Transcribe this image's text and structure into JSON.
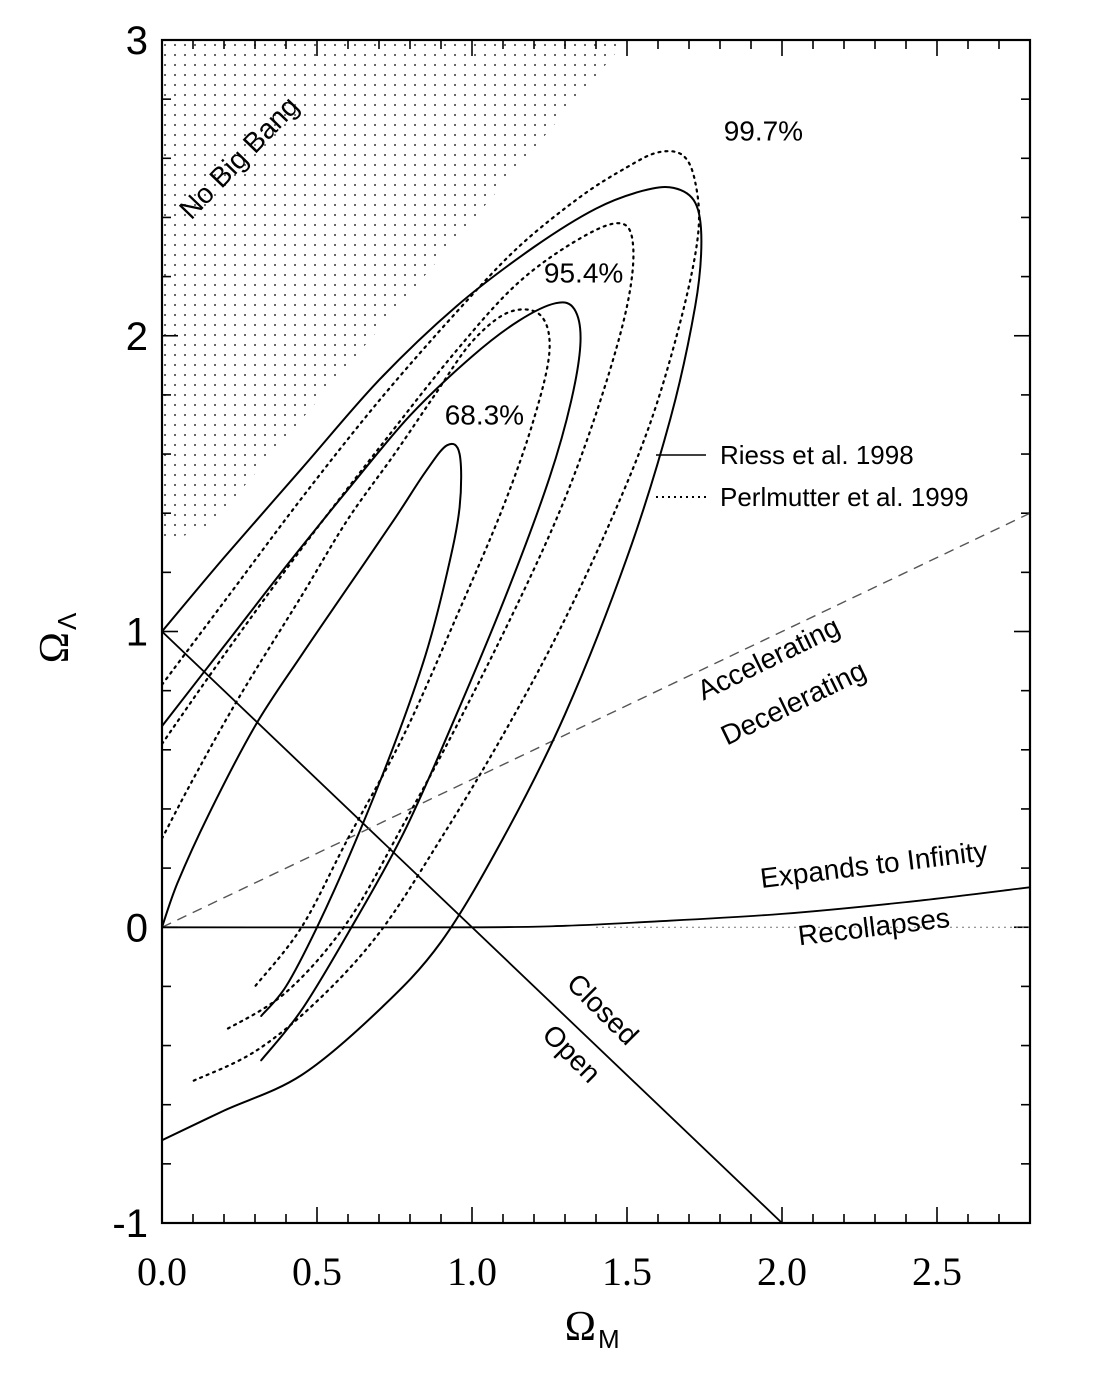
{
  "chart_data": {
    "type": "contour",
    "xlabel": "Ω",
    "xlabel_sub": "M",
    "ylabel": "Ω",
    "ylabel_sub": "Λ",
    "xlim": [
      0.0,
      2.8
    ],
    "ylim": [
      -1,
      3
    ],
    "xticks": [
      {
        "value": 0.0,
        "label": "0.0"
      },
      {
        "value": 0.5,
        "label": "0.5"
      },
      {
        "value": 1.0,
        "label": "1.0"
      },
      {
        "value": 1.5,
        "label": "1.5"
      },
      {
        "value": 2.0,
        "label": "2.0"
      },
      {
        "value": 2.5,
        "label": "2.5"
      }
    ],
    "yticks": [
      {
        "value": -1,
        "label": "-1"
      },
      {
        "value": 0,
        "label": "0"
      },
      {
        "value": 1,
        "label": "1"
      },
      {
        "value": 2,
        "label": "2"
      },
      {
        "value": 3,
        "label": "3"
      }
    ],
    "x_minor_step": 0.1,
    "y_minor_step": 0.2,
    "legend": {
      "placement": "right-middle",
      "entries": [
        {
          "name": "Riess et al. 1998",
          "style": "solid"
        },
        {
          "name": "Perlmutter et al. 1999",
          "style": "dotted"
        }
      ]
    },
    "confidence_levels": [
      "68.3%",
      "95.4%",
      "99.7%"
    ],
    "series": [
      {
        "name": "Riess et al. 1998",
        "style": "solid",
        "level": "68.3%",
        "points": [
          [
            0.0,
            0.0
          ],
          [
            0.05,
            0.15
          ],
          [
            0.15,
            0.38
          ],
          [
            0.3,
            0.68
          ],
          [
            0.45,
            0.92
          ],
          [
            0.6,
            1.15
          ],
          [
            0.75,
            1.38
          ],
          [
            0.85,
            1.54
          ],
          [
            0.92,
            1.63
          ],
          [
            0.96,
            1.6
          ],
          [
            0.96,
            1.42
          ],
          [
            0.92,
            1.2
          ],
          [
            0.85,
            0.92
          ],
          [
            0.75,
            0.62
          ],
          [
            0.62,
            0.28
          ],
          [
            0.5,
            0.0
          ],
          [
            0.4,
            -0.2
          ],
          [
            0.32,
            -0.3
          ]
        ]
      },
      {
        "name": "Riess et al. 1998",
        "style": "solid",
        "level": "95.4%",
        "points": [
          [
            0.0,
            0.68
          ],
          [
            0.2,
            0.95
          ],
          [
            0.4,
            1.22
          ],
          [
            0.6,
            1.48
          ],
          [
            0.8,
            1.73
          ],
          [
            1.0,
            1.93
          ],
          [
            1.15,
            2.05
          ],
          [
            1.27,
            2.11
          ],
          [
            1.33,
            2.09
          ],
          [
            1.35,
            1.98
          ],
          [
            1.32,
            1.78
          ],
          [
            1.25,
            1.52
          ],
          [
            1.12,
            1.15
          ],
          [
            0.95,
            0.72
          ],
          [
            0.78,
            0.32
          ],
          [
            0.6,
            -0.02
          ],
          [
            0.45,
            -0.28
          ],
          [
            0.32,
            -0.45
          ]
        ]
      },
      {
        "name": "Riess et al. 1998",
        "style": "solid",
        "level": "99.7%",
        "points": [
          [
            0.0,
            1.0
          ],
          [
            0.2,
            1.25
          ],
          [
            0.45,
            1.55
          ],
          [
            0.7,
            1.85
          ],
          [
            0.95,
            2.1
          ],
          [
            1.2,
            2.3
          ],
          [
            1.4,
            2.43
          ],
          [
            1.55,
            2.49
          ],
          [
            1.65,
            2.5
          ],
          [
            1.72,
            2.45
          ],
          [
            1.74,
            2.32
          ],
          [
            1.72,
            2.1
          ],
          [
            1.64,
            1.72
          ],
          [
            1.5,
            1.25
          ],
          [
            1.3,
            0.72
          ],
          [
            1.1,
            0.3
          ],
          [
            0.9,
            -0.05
          ],
          [
            0.7,
            -0.28
          ],
          [
            0.45,
            -0.5
          ],
          [
            0.2,
            -0.62
          ],
          [
            0.0,
            -0.72
          ]
        ]
      },
      {
        "name": "Perlmutter et al. 1999",
        "style": "dotted",
        "level": "68.3%",
        "points": [
          [
            0.0,
            0.3
          ],
          [
            0.1,
            0.5
          ],
          [
            0.25,
            0.78
          ],
          [
            0.45,
            1.12
          ],
          [
            0.6,
            1.38
          ],
          [
            0.75,
            1.6
          ],
          [
            0.88,
            1.8
          ],
          [
            1.0,
            1.98
          ],
          [
            1.12,
            2.08
          ],
          [
            1.22,
            2.07
          ],
          [
            1.25,
            1.95
          ],
          [
            1.2,
            1.72
          ],
          [
            1.1,
            1.42
          ],
          [
            0.95,
            1.05
          ],
          [
            0.78,
            0.65
          ],
          [
            0.6,
            0.3
          ],
          [
            0.45,
            0.0
          ],
          [
            0.3,
            -0.2
          ]
        ]
      },
      {
        "name": "Perlmutter et al. 1999",
        "style": "dotted",
        "level": "95.4%",
        "points": [
          [
            0.0,
            0.62
          ],
          [
            0.2,
            0.92
          ],
          [
            0.45,
            1.28
          ],
          [
            0.7,
            1.62
          ],
          [
            0.95,
            1.95
          ],
          [
            1.15,
            2.18
          ],
          [
            1.35,
            2.33
          ],
          [
            1.48,
            2.38
          ],
          [
            1.52,
            2.3
          ],
          [
            1.5,
            2.1
          ],
          [
            1.42,
            1.8
          ],
          [
            1.3,
            1.45
          ],
          [
            1.15,
            1.1
          ],
          [
            0.95,
            0.68
          ],
          [
            0.78,
            0.35
          ],
          [
            0.6,
            0.02
          ],
          [
            0.4,
            -0.22
          ],
          [
            0.2,
            -0.35
          ]
        ]
      },
      {
        "name": "Perlmutter et al. 1999",
        "style": "dotted",
        "level": "99.7%",
        "points": [
          [
            0.0,
            0.82
          ],
          [
            0.2,
            1.1
          ],
          [
            0.45,
            1.45
          ],
          [
            0.7,
            1.78
          ],
          [
            0.95,
            2.08
          ],
          [
            1.15,
            2.3
          ],
          [
            1.35,
            2.47
          ],
          [
            1.5,
            2.57
          ],
          [
            1.6,
            2.62
          ],
          [
            1.68,
            2.61
          ],
          [
            1.72,
            2.52
          ],
          [
            1.73,
            2.35
          ],
          [
            1.68,
            2.08
          ],
          [
            1.58,
            1.72
          ],
          [
            1.45,
            1.38
          ],
          [
            1.28,
            1.0
          ],
          [
            1.1,
            0.65
          ],
          [
            0.9,
            0.3
          ],
          [
            0.7,
            -0.02
          ],
          [
            0.5,
            -0.25
          ],
          [
            0.3,
            -0.42
          ],
          [
            0.1,
            -0.52
          ]
        ]
      }
    ],
    "boundaries": [
      {
        "name": "Closed / Open",
        "style": "solid",
        "points": [
          [
            0.0,
            1.0
          ],
          [
            2.0,
            -1.0
          ]
        ]
      },
      {
        "name": "Accelerating / Decelerating",
        "style": "dashed",
        "points": [
          [
            0.0,
            0.0
          ],
          [
            2.8,
            1.4
          ]
        ]
      },
      {
        "name": "Expands to Infinity / Recollapses",
        "style": "solid",
        "points": [
          [
            0.0,
            0.0
          ],
          [
            1.0,
            0.0
          ],
          [
            1.3,
            0.005
          ],
          [
            1.6,
            0.02
          ],
          [
            2.0,
            0.045
          ],
          [
            2.4,
            0.085
          ],
          [
            2.8,
            0.135
          ]
        ]
      },
      {
        "name": "Recollapses reference",
        "style": "thin-dotted",
        "points": [
          [
            1.4,
            0.0
          ],
          [
            2.8,
            0.0
          ]
        ]
      }
    ],
    "regions": [
      {
        "label": "No Big Bang",
        "fill": "dot-pattern",
        "points": [
          [
            0.0,
            3.0
          ],
          [
            1.5,
            3.0
          ],
          [
            0.15,
            1.35
          ],
          [
            0.0,
            1.3
          ]
        ]
      }
    ],
    "annotations": [
      {
        "text": "No Big Bang",
        "x": 0.27,
        "y": 2.58,
        "rotation": -46
      },
      {
        "text": "99.7%",
        "x": 1.94,
        "y": 2.66,
        "rotation": 0
      },
      {
        "text": "95.4%",
        "x": 1.36,
        "y": 2.18,
        "rotation": 0
      },
      {
        "text": "68.3%",
        "x": 1.04,
        "y": 1.7,
        "rotation": 0
      },
      {
        "text": "Accelerating",
        "x": 1.97,
        "y": 0.88,
        "rotation": -26
      },
      {
        "text": "Decelerating",
        "x": 2.05,
        "y": 0.73,
        "rotation": -26
      },
      {
        "text": "Expands to Infinity",
        "x": 2.3,
        "y": 0.18,
        "rotation": -7
      },
      {
        "text": "Recollapses",
        "x": 2.3,
        "y": -0.03,
        "rotation": -7
      },
      {
        "text": "Closed",
        "x": 1.4,
        "y": -0.3,
        "rotation": 45
      },
      {
        "text": "Open",
        "x": 1.3,
        "y": -0.45,
        "rotation": 45
      }
    ],
    "colors": {
      "axis": "#000000",
      "curve": "#000000",
      "dashed": "#555555",
      "region_dot": "#555555"
    }
  }
}
